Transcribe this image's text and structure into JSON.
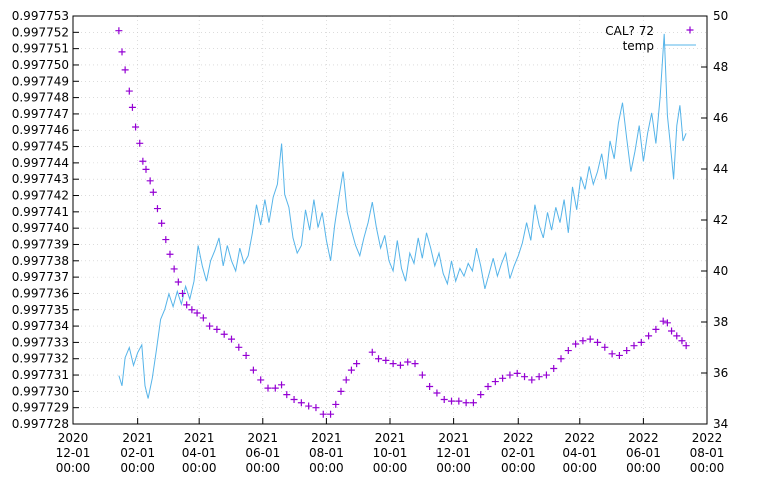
{
  "chart_data": {
    "type": "scatter",
    "title": "",
    "xlabel": "",
    "ylabel": "",
    "y2label": "",
    "grid": true,
    "legend_position": "top-right",
    "xlim": [
      "2020-12-01",
      "2022-08-01"
    ],
    "ylim": [
      0.997728,
      0.997753
    ],
    "y2lim": [
      34,
      50
    ],
    "x_ticks": [
      {
        "date": "2020-12-01",
        "lines": [
          "2020",
          "12-01",
          "00:00"
        ]
      },
      {
        "date": "2021-02-01",
        "lines": [
          "2021",
          "02-01",
          "00:00"
        ]
      },
      {
        "date": "2021-04-01",
        "lines": [
          "2021",
          "04-01",
          "00:00"
        ]
      },
      {
        "date": "2021-06-01",
        "lines": [
          "2021",
          "06-01",
          "00:00"
        ]
      },
      {
        "date": "2021-08-01",
        "lines": [
          "2021",
          "08-01",
          "00:00"
        ]
      },
      {
        "date": "2021-10-01",
        "lines": [
          "2021",
          "10-01",
          "00:00"
        ]
      },
      {
        "date": "2021-12-01",
        "lines": [
          "2021",
          "12-01",
          "00:00"
        ]
      },
      {
        "date": "2022-02-01",
        "lines": [
          "2022",
          "02-01",
          "00:00"
        ]
      },
      {
        "date": "2022-04-01",
        "lines": [
          "2022",
          "04-01",
          "00:00"
        ]
      },
      {
        "date": "2022-06-01",
        "lines": [
          "2022",
          "06-01",
          "00:00"
        ]
      },
      {
        "date": "2022-08-01",
        "lines": [
          "2022",
          "08-01",
          "00:00"
        ]
      }
    ],
    "y_ticks": [
      "0.997728",
      "0.997729",
      "0.997730",
      "0.997731",
      "0.997732",
      "0.997733",
      "0.997734",
      "0.997735",
      "0.997736",
      "0.997737",
      "0.997738",
      "0.997739",
      "0.997740",
      "0.997741",
      "0.997742",
      "0.997743",
      "0.997744",
      "0.997745",
      "0.997746",
      "0.997747",
      "0.997748",
      "0.997749",
      "0.997750",
      "0.997751",
      "0.997752",
      "0.997753"
    ],
    "y2_ticks": [
      "34",
      "36",
      "38",
      "40",
      "42",
      "44",
      "46",
      "48",
      "50"
    ],
    "series": [
      {
        "name": "CAL? 72",
        "axis": "y",
        "style": "points",
        "marker": "+",
        "color": "#9400d3",
        "points": [
          [
            "2021-01-14",
            0.9977521
          ],
          [
            "2021-01-17",
            0.9977508
          ],
          [
            "2021-01-20",
            0.9977497
          ],
          [
            "2021-01-24",
            0.9977484
          ],
          [
            "2021-01-27",
            0.9977474
          ],
          [
            "2021-01-30",
            0.9977462
          ],
          [
            "2021-02-03",
            0.9977452
          ],
          [
            "2021-02-06",
            0.9977441
          ],
          [
            "2021-02-09",
            0.9977436
          ],
          [
            "2021-02-13",
            0.9977429
          ],
          [
            "2021-02-16",
            0.9977422
          ],
          [
            "2021-02-20",
            0.9977412
          ],
          [
            "2021-02-24",
            0.9977403
          ],
          [
            "2021-02-28",
            0.9977393
          ],
          [
            "2021-03-04",
            0.9977384
          ],
          [
            "2021-03-08",
            0.9977375
          ],
          [
            "2021-03-12",
            0.9977367
          ],
          [
            "2021-03-16",
            0.997736
          ],
          [
            "2021-03-20",
            0.9977353
          ],
          [
            "2021-03-25",
            0.997735
          ],
          [
            "2021-03-30",
            0.9977348
          ],
          [
            "2021-04-05",
            0.9977345
          ],
          [
            "2021-04-11",
            0.997734
          ],
          [
            "2021-04-18",
            0.9977338
          ],
          [
            "2021-04-25",
            0.9977335
          ],
          [
            "2021-05-02",
            0.9977332
          ],
          [
            "2021-05-09",
            0.9977327
          ],
          [
            "2021-05-16",
            0.9977322
          ],
          [
            "2021-05-23",
            0.9977313
          ],
          [
            "2021-05-30",
            0.9977307
          ],
          [
            "2021-06-06",
            0.9977302
          ],
          [
            "2021-06-13",
            0.9977302
          ],
          [
            "2021-06-19",
            0.9977304
          ],
          [
            "2021-06-24",
            0.9977298
          ],
          [
            "2021-07-01",
            0.9977295
          ],
          [
            "2021-07-08",
            0.9977293
          ],
          [
            "2021-07-15",
            0.9977291
          ],
          [
            "2021-07-22",
            0.997729
          ],
          [
            "2021-07-29",
            0.9977286
          ],
          [
            "2021-08-05",
            0.9977286
          ],
          [
            "2021-08-10",
            0.9977292
          ],
          [
            "2021-08-15",
            0.99773
          ],
          [
            "2021-08-20",
            0.9977307
          ],
          [
            "2021-08-25",
            0.9977313
          ],
          [
            "2021-08-30",
            0.9977317
          ],
          [
            "2021-09-14",
            0.9977324
          ],
          [
            "2021-09-20",
            0.997732
          ],
          [
            "2021-09-27",
            0.9977319
          ],
          [
            "2021-10-04",
            0.9977317
          ],
          [
            "2021-10-11",
            0.9977316
          ],
          [
            "2021-10-18",
            0.9977318
          ],
          [
            "2021-10-25",
            0.9977317
          ],
          [
            "2021-11-01",
            0.997731
          ],
          [
            "2021-11-08",
            0.9977303
          ],
          [
            "2021-11-15",
            0.9977299
          ],
          [
            "2021-11-22",
            0.9977295
          ],
          [
            "2021-11-29",
            0.9977294
          ],
          [
            "2021-12-06",
            0.9977294
          ],
          [
            "2021-12-13",
            0.9977293
          ],
          [
            "2021-12-20",
            0.9977293
          ],
          [
            "2021-12-27",
            0.9977298
          ],
          [
            "2022-01-03",
            0.9977303
          ],
          [
            "2022-01-10",
            0.9977306
          ],
          [
            "2022-01-17",
            0.9977308
          ],
          [
            "2022-01-24",
            0.997731
          ],
          [
            "2022-01-31",
            0.9977311
          ],
          [
            "2022-02-07",
            0.9977309
          ],
          [
            "2022-02-14",
            0.9977307
          ],
          [
            "2022-02-21",
            0.9977309
          ],
          [
            "2022-02-28",
            0.997731
          ],
          [
            "2022-03-07",
            0.9977314
          ],
          [
            "2022-03-14",
            0.997732
          ],
          [
            "2022-03-21",
            0.9977325
          ],
          [
            "2022-03-28",
            0.9977329
          ],
          [
            "2022-04-04",
            0.9977331
          ],
          [
            "2022-04-11",
            0.9977332
          ],
          [
            "2022-04-18",
            0.997733
          ],
          [
            "2022-04-25",
            0.9977327
          ],
          [
            "2022-05-02",
            0.9977323
          ],
          [
            "2022-05-09",
            0.9977322
          ],
          [
            "2022-05-16",
            0.9977325
          ],
          [
            "2022-05-23",
            0.9977328
          ],
          [
            "2022-05-30",
            0.997733
          ],
          [
            "2022-06-06",
            0.9977334
          ],
          [
            "2022-06-13",
            0.9977338
          ],
          [
            "2022-06-20",
            0.9977343
          ],
          [
            "2022-06-24",
            0.9977342
          ],
          [
            "2022-06-28",
            0.9977337
          ],
          [
            "2022-07-03",
            0.9977334
          ],
          [
            "2022-07-08",
            0.9977331
          ],
          [
            "2022-07-12",
            0.9977328
          ]
        ]
      },
      {
        "name": "temp",
        "axis": "y2",
        "style": "lines",
        "color": "#56b4e9",
        "points": [
          [
            "2021-01-14",
            35.9
          ],
          [
            "2021-01-17",
            35.5
          ],
          [
            "2021-01-20",
            36.6
          ],
          [
            "2021-01-24",
            37.0
          ],
          [
            "2021-01-28",
            36.3
          ],
          [
            "2021-02-01",
            36.8
          ],
          [
            "2021-02-05",
            37.1
          ],
          [
            "2021-02-08",
            35.5
          ],
          [
            "2021-02-11",
            35.0
          ],
          [
            "2021-02-15",
            35.8
          ],
          [
            "2021-02-19",
            36.9
          ],
          [
            "2021-02-23",
            38.1
          ],
          [
            "2021-02-27",
            38.5
          ],
          [
            "2021-03-03",
            39.1
          ],
          [
            "2021-03-07",
            38.6
          ],
          [
            "2021-03-11",
            39.2
          ],
          [
            "2021-03-15",
            38.7
          ],
          [
            "2021-03-19",
            39.4
          ],
          [
            "2021-03-23",
            38.9
          ],
          [
            "2021-03-27",
            39.6
          ],
          [
            "2021-03-31",
            41.0
          ],
          [
            "2021-04-04",
            40.2
          ],
          [
            "2021-04-08",
            39.6
          ],
          [
            "2021-04-12",
            40.4
          ],
          [
            "2021-04-16",
            40.8
          ],
          [
            "2021-04-20",
            41.3
          ],
          [
            "2021-04-24",
            40.2
          ],
          [
            "2021-04-28",
            41.0
          ],
          [
            "2021-05-02",
            40.4
          ],
          [
            "2021-05-06",
            40.0
          ],
          [
            "2021-05-10",
            40.9
          ],
          [
            "2021-05-14",
            40.3
          ],
          [
            "2021-05-18",
            40.6
          ],
          [
            "2021-05-22",
            41.5
          ],
          [
            "2021-05-26",
            42.6
          ],
          [
            "2021-05-30",
            41.8
          ],
          [
            "2021-06-03",
            42.8
          ],
          [
            "2021-06-07",
            41.9
          ],
          [
            "2021-06-11",
            42.9
          ],
          [
            "2021-06-15",
            43.4
          ],
          [
            "2021-06-19",
            45.0
          ],
          [
            "2021-06-22",
            43.0
          ],
          [
            "2021-06-26",
            42.5
          ],
          [
            "2021-06-30",
            41.3
          ],
          [
            "2021-07-04",
            40.7
          ],
          [
            "2021-07-08",
            41.0
          ],
          [
            "2021-07-12",
            42.4
          ],
          [
            "2021-07-16",
            41.6
          ],
          [
            "2021-07-20",
            42.8
          ],
          [
            "2021-07-24",
            41.7
          ],
          [
            "2021-07-28",
            42.3
          ],
          [
            "2021-08-01",
            41.2
          ],
          [
            "2021-08-05",
            40.4
          ],
          [
            "2021-08-09",
            41.8
          ],
          [
            "2021-08-13",
            42.9
          ],
          [
            "2021-08-17",
            43.9
          ],
          [
            "2021-08-21",
            42.3
          ],
          [
            "2021-08-25",
            41.6
          ],
          [
            "2021-08-29",
            41.0
          ],
          [
            "2021-09-02",
            40.6
          ],
          [
            "2021-09-06",
            41.3
          ],
          [
            "2021-09-10",
            41.9
          ],
          [
            "2021-09-14",
            42.7
          ],
          [
            "2021-09-18",
            41.7
          ],
          [
            "2021-09-22",
            40.9
          ],
          [
            "2021-09-26",
            41.4
          ],
          [
            "2021-09-30",
            40.4
          ],
          [
            "2021-10-04",
            40.0
          ],
          [
            "2021-10-08",
            41.2
          ],
          [
            "2021-10-12",
            40.1
          ],
          [
            "2021-10-16",
            39.6
          ],
          [
            "2021-10-20",
            40.7
          ],
          [
            "2021-10-24",
            40.3
          ],
          [
            "2021-10-28",
            41.3
          ],
          [
            "2021-11-01",
            40.5
          ],
          [
            "2021-11-05",
            41.5
          ],
          [
            "2021-11-09",
            40.9
          ],
          [
            "2021-11-13",
            40.2
          ],
          [
            "2021-11-17",
            40.7
          ],
          [
            "2021-11-21",
            39.9
          ],
          [
            "2021-11-25",
            39.5
          ],
          [
            "2021-11-29",
            40.4
          ],
          [
            "2021-12-03",
            39.6
          ],
          [
            "2021-12-07",
            40.1
          ],
          [
            "2021-12-11",
            39.8
          ],
          [
            "2021-12-15",
            40.3
          ],
          [
            "2021-12-19",
            40.0
          ],
          [
            "2021-12-23",
            40.9
          ],
          [
            "2021-12-27",
            40.2
          ],
          [
            "2021-12-31",
            39.3
          ],
          [
            "2022-01-04",
            39.9
          ],
          [
            "2022-01-08",
            40.5
          ],
          [
            "2022-01-12",
            39.8
          ],
          [
            "2022-01-16",
            40.3
          ],
          [
            "2022-01-20",
            40.7
          ],
          [
            "2022-01-24",
            39.7
          ],
          [
            "2022-01-28",
            40.2
          ],
          [
            "2022-02-01",
            40.6
          ],
          [
            "2022-02-05",
            41.1
          ],
          [
            "2022-02-09",
            41.9
          ],
          [
            "2022-02-13",
            41.2
          ],
          [
            "2022-02-17",
            42.6
          ],
          [
            "2022-02-21",
            41.8
          ],
          [
            "2022-02-25",
            41.3
          ],
          [
            "2022-03-01",
            42.3
          ],
          [
            "2022-03-05",
            41.6
          ],
          [
            "2022-03-09",
            42.5
          ],
          [
            "2022-03-13",
            41.9
          ],
          [
            "2022-03-17",
            42.8
          ],
          [
            "2022-03-21",
            41.5
          ],
          [
            "2022-03-25",
            43.3
          ],
          [
            "2022-03-29",
            42.4
          ],
          [
            "2022-04-02",
            43.7
          ],
          [
            "2022-04-06",
            43.2
          ],
          [
            "2022-04-10",
            44.1
          ],
          [
            "2022-04-14",
            43.4
          ],
          [
            "2022-04-18",
            43.9
          ],
          [
            "2022-04-22",
            44.6
          ],
          [
            "2022-04-26",
            43.6
          ],
          [
            "2022-04-30",
            45.1
          ],
          [
            "2022-05-04",
            44.4
          ],
          [
            "2022-05-08",
            45.8
          ],
          [
            "2022-05-12",
            46.6
          ],
          [
            "2022-05-16",
            45.2
          ],
          [
            "2022-05-20",
            43.9
          ],
          [
            "2022-05-24",
            44.7
          ],
          [
            "2022-05-28",
            45.7
          ],
          [
            "2022-06-01",
            44.3
          ],
          [
            "2022-06-05",
            45.4
          ],
          [
            "2022-06-09",
            46.2
          ],
          [
            "2022-06-13",
            45.0
          ],
          [
            "2022-06-17",
            46.8
          ],
          [
            "2022-06-21",
            49.3
          ],
          [
            "2022-06-24",
            46.1
          ],
          [
            "2022-06-27",
            44.9
          ],
          [
            "2022-06-30",
            43.6
          ],
          [
            "2022-07-03",
            45.7
          ],
          [
            "2022-07-06",
            46.5
          ],
          [
            "2022-07-09",
            45.1
          ],
          [
            "2022-07-12",
            45.4
          ]
        ]
      }
    ]
  }
}
